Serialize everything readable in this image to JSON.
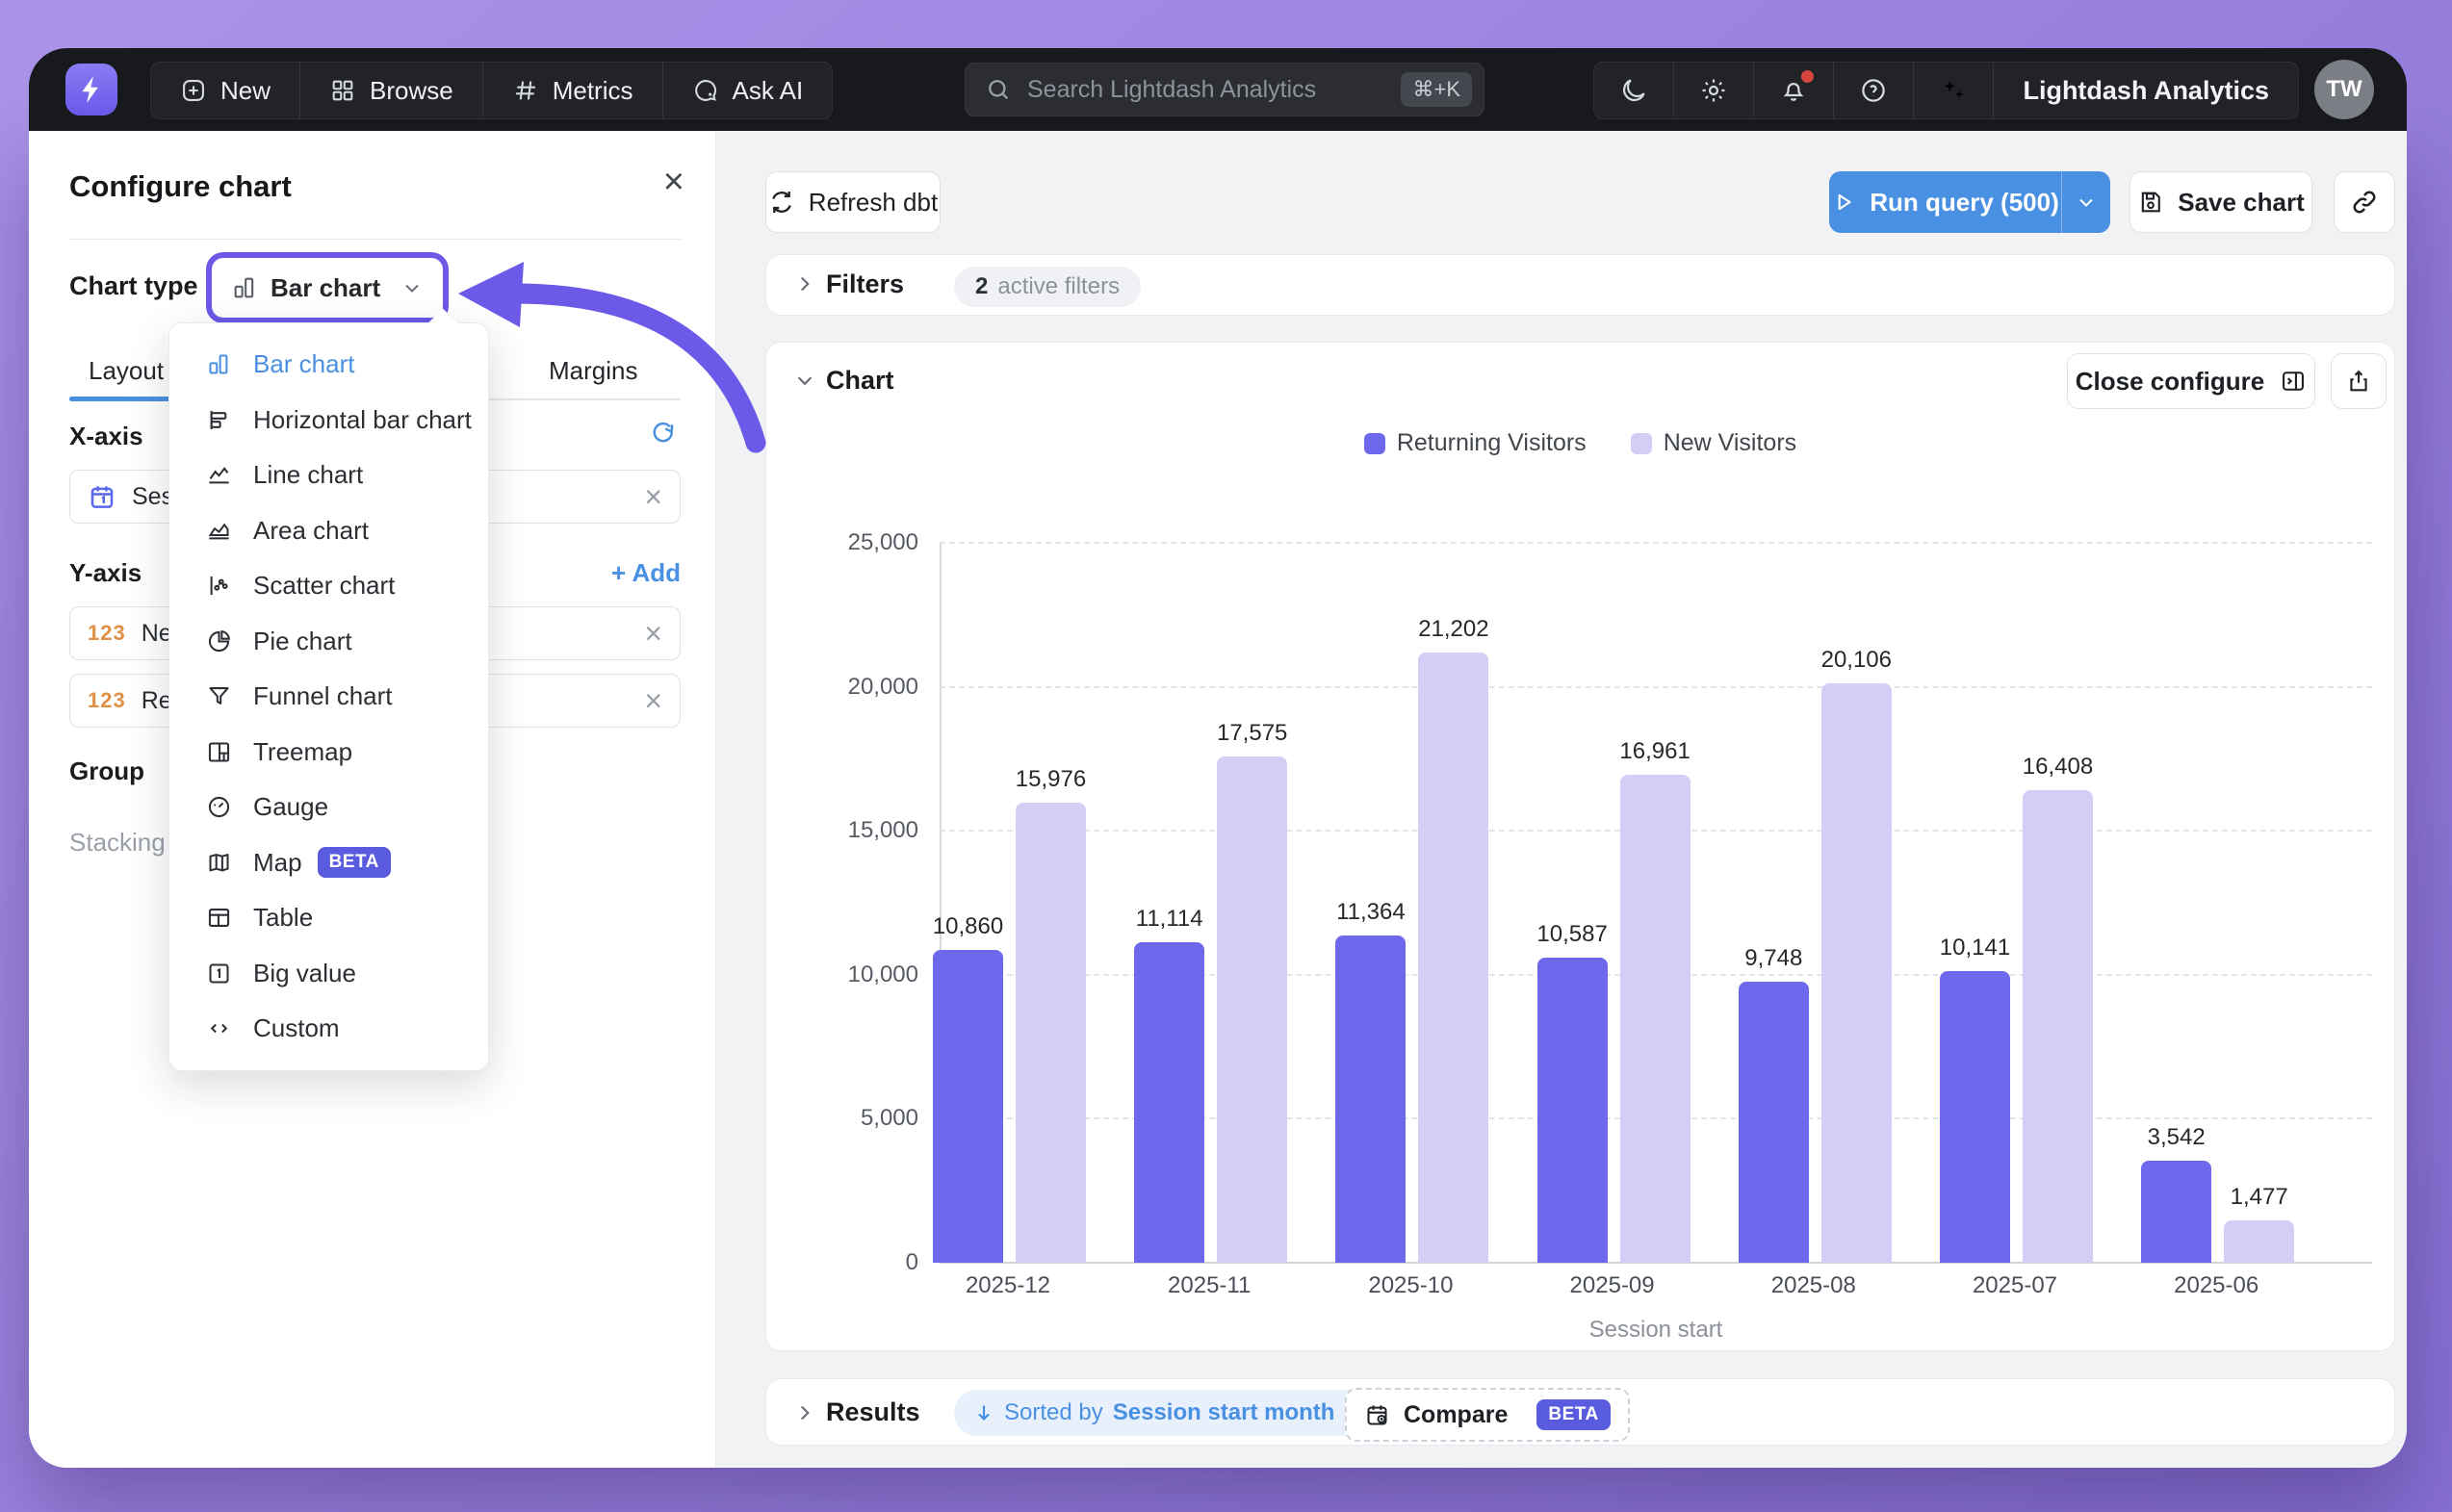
{
  "navbar": {
    "items": [
      {
        "label": "New",
        "icon": "plus-square"
      },
      {
        "label": "Browse",
        "icon": "grid"
      },
      {
        "label": "Metrics",
        "icon": "hash"
      },
      {
        "label": "Ask AI",
        "icon": "chat-star"
      }
    ],
    "search": {
      "placeholder": "Search Lightdash Analytics",
      "shortcut": "⌘+K"
    },
    "icon_buttons": [
      "moon",
      "gear",
      "bell",
      "help",
      "sparkles"
    ],
    "notification_dot_color": "#d6453f",
    "org_name": "Lightdash Analytics",
    "avatar_initials": "TW"
  },
  "configure_panel": {
    "title": "Configure chart",
    "chart_type_label": "Chart type",
    "chart_type_value": "Bar chart",
    "tabs": [
      {
        "label": "Layout",
        "active": true
      },
      {
        "label": "Margins",
        "active": false
      }
    ],
    "x_axis": {
      "label": "X-axis",
      "field_value": "Session start"
    },
    "y_axis": {
      "label": "Y-axis",
      "add_label": "+ Add",
      "fields": [
        {
          "value": "New Visitors"
        },
        {
          "value": "Returning Visitors"
        }
      ]
    },
    "group_label": "Group",
    "stacking_label": "Stacking"
  },
  "chart_type_menu": {
    "beta_badge": "BETA",
    "items": [
      {
        "label": "Bar chart",
        "icon": "bar",
        "selected": true
      },
      {
        "label": "Horizontal bar chart",
        "icon": "hbar"
      },
      {
        "label": "Line chart",
        "icon": "line"
      },
      {
        "label": "Area chart",
        "icon": "area"
      },
      {
        "label": "Scatter chart",
        "icon": "scatter"
      },
      {
        "label": "Pie chart",
        "icon": "pie"
      },
      {
        "label": "Funnel chart",
        "icon": "funnel"
      },
      {
        "label": "Treemap",
        "icon": "treemap"
      },
      {
        "label": "Gauge",
        "icon": "gauge"
      },
      {
        "label": "Map",
        "icon": "map",
        "beta": true
      },
      {
        "label": "Table",
        "icon": "table"
      },
      {
        "label": "Big value",
        "icon": "bigvalue"
      },
      {
        "label": "Custom",
        "icon": "custom"
      }
    ]
  },
  "toolbar": {
    "refresh_dbt": "Refresh dbt",
    "run_query": "Run query (500)",
    "save_chart": "Save chart"
  },
  "filters": {
    "title": "Filters",
    "active_count": "2",
    "active_text": "active filters"
  },
  "chart_section": {
    "title": "Chart",
    "close_configure": "Close configure"
  },
  "results": {
    "title": "Results",
    "sorted_prefix": "Sorted by",
    "sorted_field": "Session start month",
    "compare": "Compare",
    "beta_badge": "BETA"
  },
  "colors": {
    "accent_blue": "#4a90e2",
    "annotation_purple": "#6c59e8",
    "returning_bar": "#6e69ec",
    "new_bar": "#d2cef6",
    "beta_badge_bg": "#5a5ce0",
    "notification_dot": "#d6453f"
  },
  "chart_data": {
    "type": "bar",
    "categories": [
      "2025-12",
      "2025-11",
      "2025-10",
      "2025-09",
      "2025-08",
      "2025-07",
      "2025-06"
    ],
    "series": [
      {
        "name": "Returning Visitors",
        "color": "#6e69ec",
        "values": [
          10860,
          11114,
          11364,
          10587,
          9748,
          10141,
          3542
        ]
      },
      {
        "name": "New Visitors",
        "color": "#d2cef6",
        "values": [
          15976,
          17575,
          21202,
          16961,
          20106,
          16408,
          1477
        ]
      }
    ],
    "xlabel": "Session start",
    "ylim": [
      0,
      25000
    ],
    "ytick_step": 5000,
    "grid": "horizontal-dashed",
    "legend_position": "top",
    "value_labels": true
  }
}
